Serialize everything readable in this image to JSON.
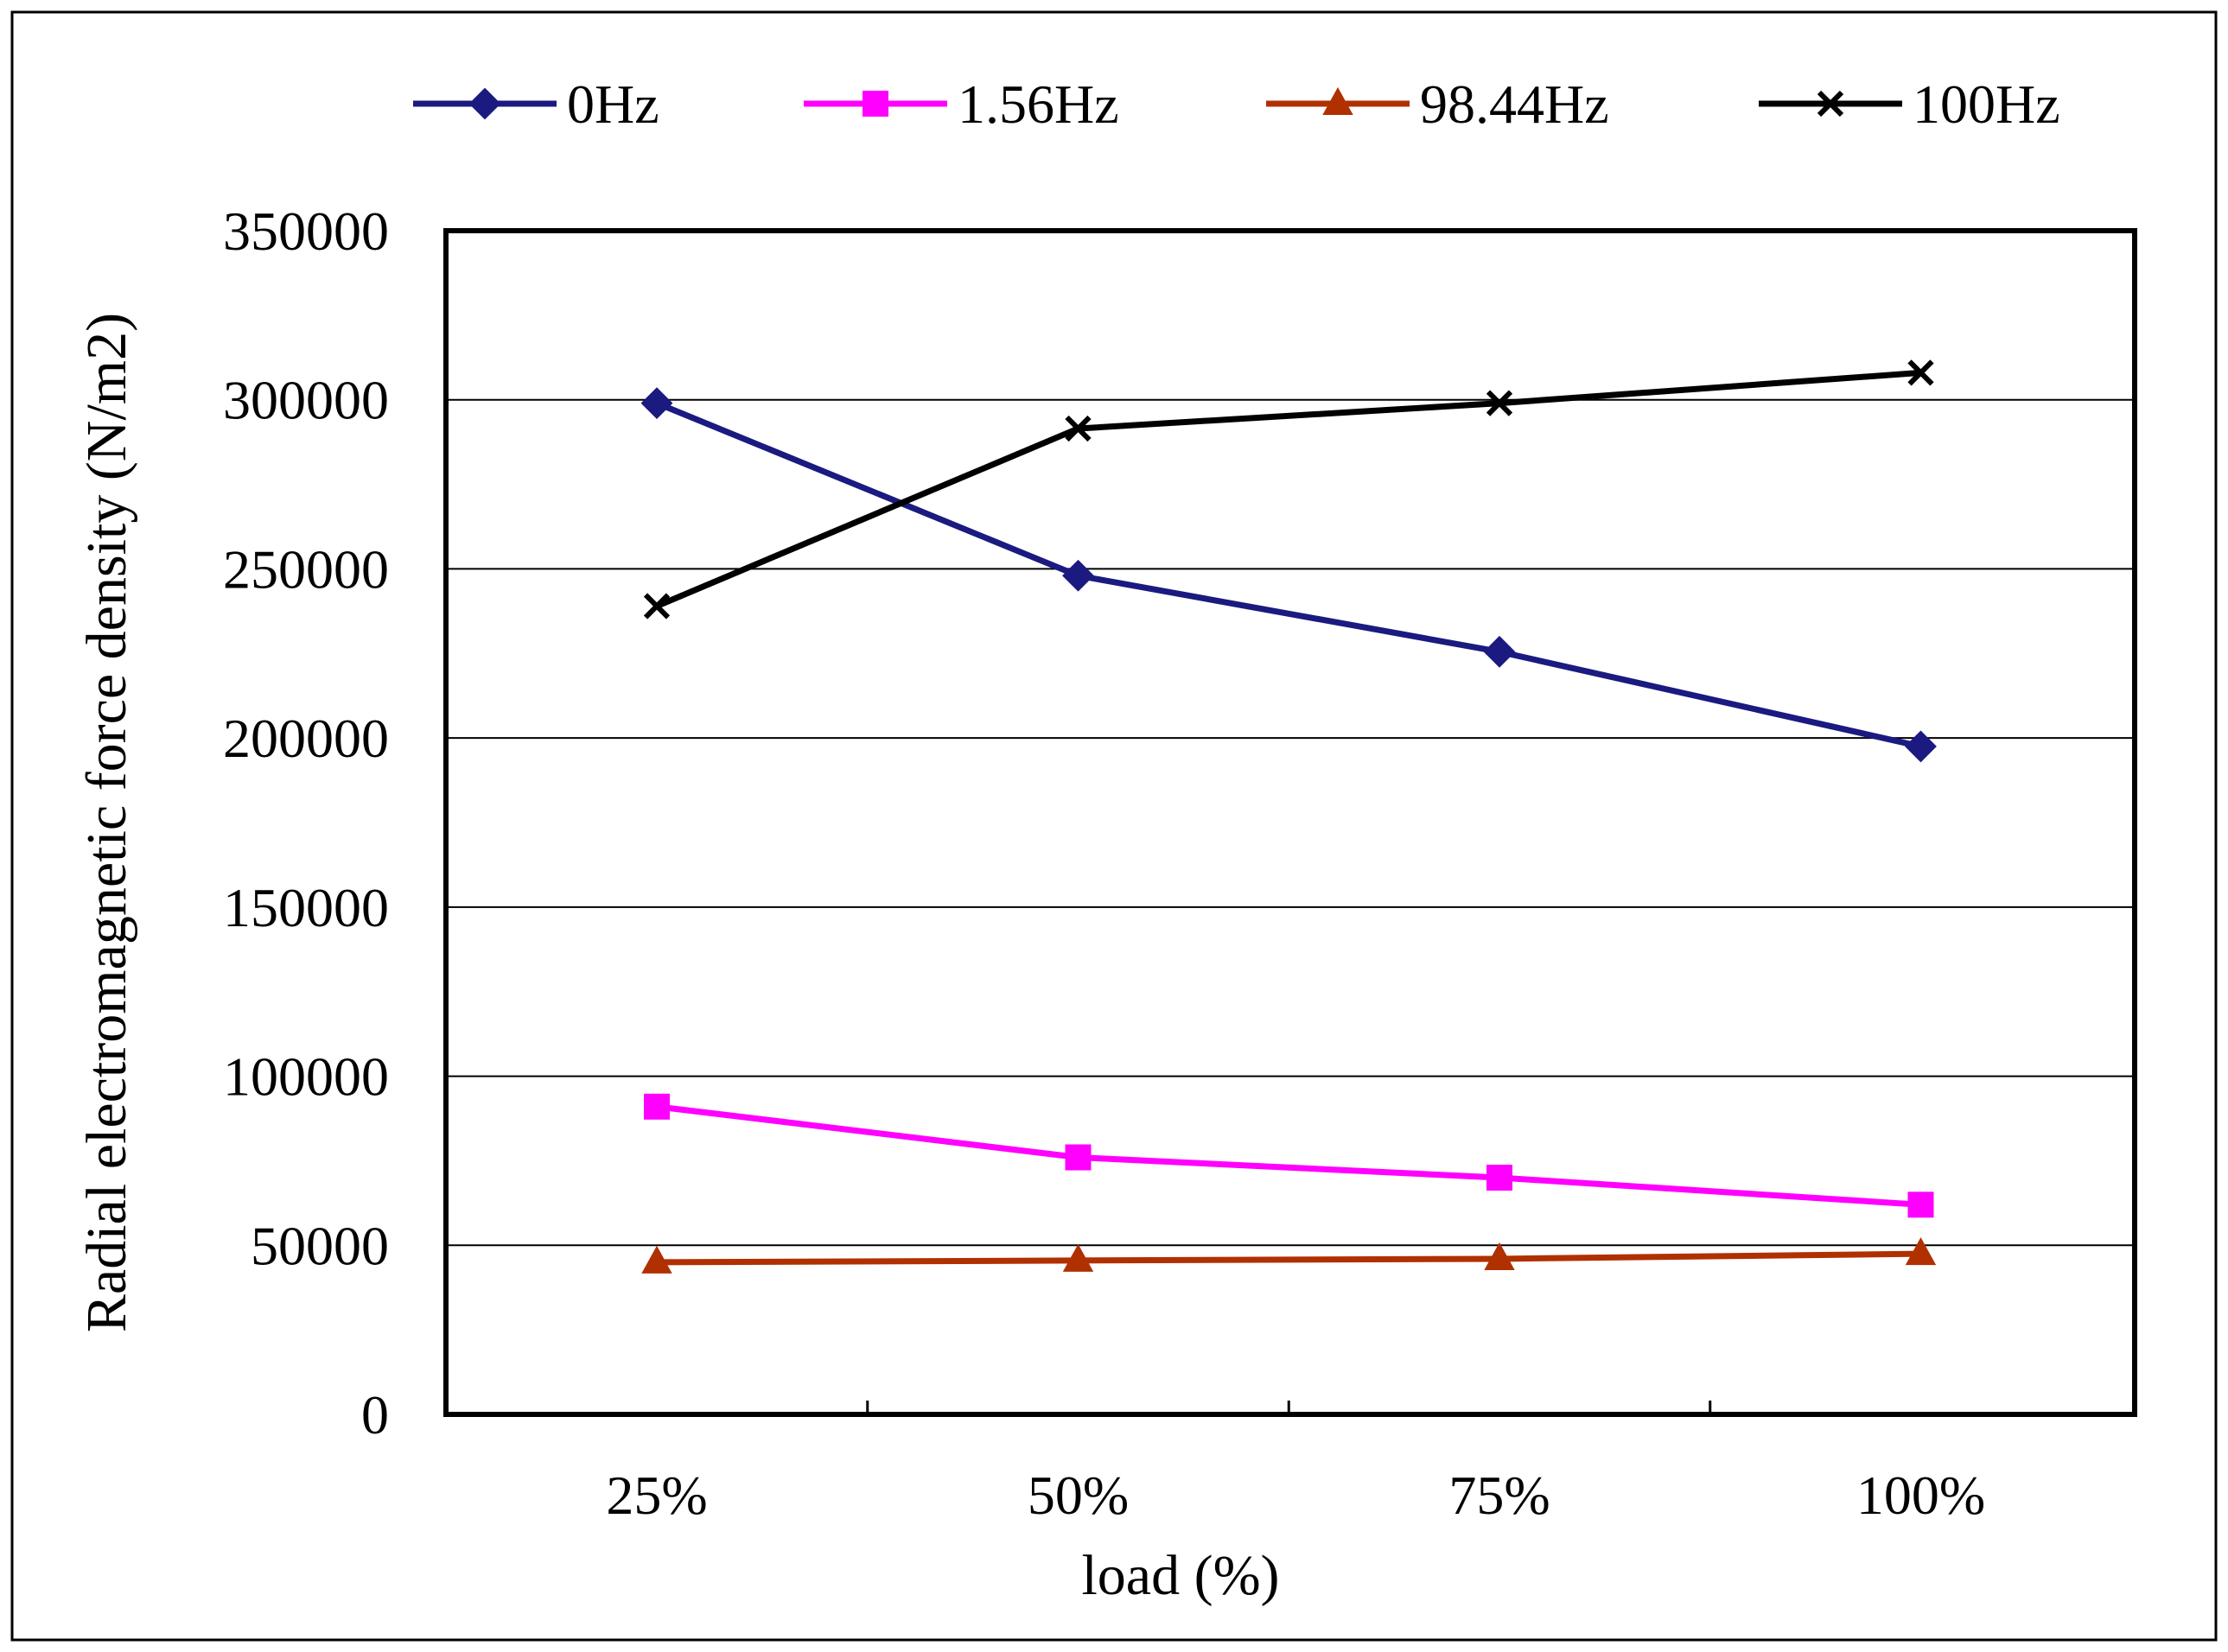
{
  "chart_data": {
    "type": "line",
    "title": "",
    "xlabel": "load (%)",
    "ylabel": "Radial electromagnetic force density (N/m2)",
    "categories": [
      "25%",
      "50%",
      "75%",
      "100%"
    ],
    "ylim": [
      0,
      350000
    ],
    "yticks": [
      0,
      50000,
      100000,
      150000,
      200000,
      250000,
      300000,
      350000
    ],
    "ytick_labels": [
      "0",
      "50000",
      "100000",
      "150000",
      "200000",
      "250000",
      "300000",
      "350000"
    ],
    "grid": "horizontal",
    "legend": "top",
    "series": [
      {
        "name": "0Hz",
        "values": [
          299000,
          248000,
          225500,
          197500
        ],
        "color": "#1a1a80",
        "marker": "diamond"
      },
      {
        "name": "1.56Hz",
        "values": [
          91000,
          76000,
          70000,
          62000
        ],
        "color": "#ff00ff",
        "marker": "square"
      },
      {
        "name": "98.44Hz",
        "values": [
          45000,
          45500,
          46000,
          47500
        ],
        "color": "#b03000",
        "marker": "triangle"
      },
      {
        "name": "100Hz",
        "values": [
          239000,
          291500,
          299000,
          308000
        ],
        "color": "#000000",
        "marker": "x"
      }
    ]
  }
}
